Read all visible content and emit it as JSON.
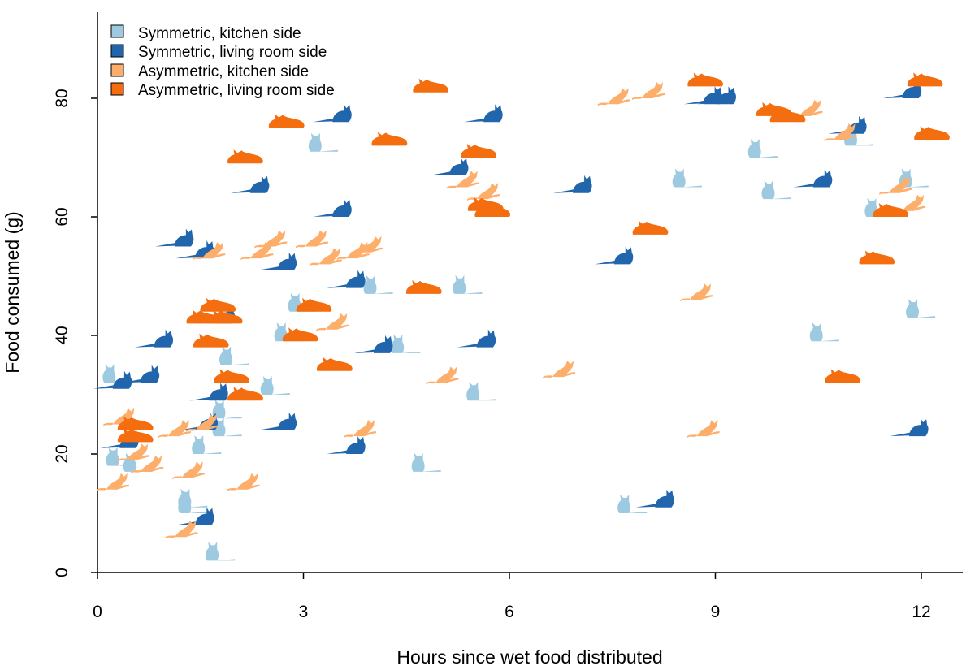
{
  "chart_data": {
    "type": "scatter",
    "title": "",
    "xlabel": "Hours since wet food distributed",
    "ylabel": "Food consumed (g)",
    "xlim": [
      0,
      12.4
    ],
    "ylim": [
      0,
      95
    ],
    "xticks": [
      0,
      3,
      6,
      9,
      12
    ],
    "yticks": [
      0,
      20,
      40,
      60,
      80
    ],
    "xtick_labels": [
      "0",
      "3",
      "6",
      "9",
      "12"
    ],
    "ytick_labels": [
      "0",
      "20",
      "40",
      "60",
      "80"
    ],
    "legend_position": "top-left",
    "series": [
      {
        "name": "Symmetric, kitchen side",
        "color": "#9ecae1",
        "marker": "sitting-cat-icon",
        "points": [
          [
            0.1,
            32
          ],
          [
            0.15,
            18
          ],
          [
            0.4,
            17
          ],
          [
            1.2,
            11
          ],
          [
            1.2,
            10
          ],
          [
            1.4,
            20
          ],
          [
            1.6,
            2
          ],
          [
            1.7,
            26
          ],
          [
            1.7,
            23
          ],
          [
            1.8,
            35
          ],
          [
            2.4,
            30
          ],
          [
            2.6,
            39
          ],
          [
            2.8,
            44
          ],
          [
            3.1,
            71
          ],
          [
            3.9,
            47
          ],
          [
            4.3,
            37
          ],
          [
            4.6,
            17
          ],
          [
            5.2,
            47
          ],
          [
            5.4,
            29
          ],
          [
            7.6,
            10
          ],
          [
            8.4,
            65
          ],
          [
            9.5,
            70
          ],
          [
            9.7,
            63
          ],
          [
            10.4,
            39
          ],
          [
            10.9,
            72
          ],
          [
            11.2,
            60
          ],
          [
            11.7,
            65
          ],
          [
            11.8,
            43
          ]
        ]
      },
      {
        "name": "Symmetric, living room side",
        "color": "#2166ac",
        "marker": "lying-cat-icon",
        "points": [
          [
            0.2,
            31
          ],
          [
            0.3,
            21
          ],
          [
            0.6,
            32
          ],
          [
            0.8,
            38
          ],
          [
            1.1,
            55
          ],
          [
            1.4,
            53
          ],
          [
            1.45,
            24
          ],
          [
            1.4,
            8
          ],
          [
            1.6,
            29
          ],
          [
            1.7,
            42
          ],
          [
            2.2,
            64
          ],
          [
            2.6,
            24
          ],
          [
            2.6,
            51
          ],
          [
            3.4,
            76
          ],
          [
            3.4,
            60
          ],
          [
            3.6,
            48
          ],
          [
            3.6,
            20
          ],
          [
            4.0,
            37
          ],
          [
            5.1,
            67
          ],
          [
            5.5,
            38
          ],
          [
            5.6,
            76
          ],
          [
            6.9,
            64
          ],
          [
            7.5,
            52
          ],
          [
            8.1,
            11
          ],
          [
            8.8,
            79
          ],
          [
            9.0,
            79
          ],
          [
            10.4,
            65
          ],
          [
            10.9,
            74
          ],
          [
            11.7,
            80
          ],
          [
            11.8,
            23
          ]
        ]
      },
      {
        "name": "Asymmetric, kitchen side",
        "color": "#fdae6b",
        "marker": "pouncing-cat-icon",
        "points": [
          [
            0.2,
            14
          ],
          [
            0.3,
            25
          ],
          [
            0.5,
            19
          ],
          [
            0.7,
            17
          ],
          [
            1.1,
            23
          ],
          [
            1.2,
            6
          ],
          [
            1.3,
            16
          ],
          [
            1.5,
            24
          ],
          [
            1.6,
            53
          ],
          [
            2.1,
            14
          ],
          [
            2.3,
            53
          ],
          [
            2.5,
            55
          ],
          [
            3.1,
            55
          ],
          [
            3.3,
            52
          ],
          [
            3.4,
            41
          ],
          [
            3.7,
            53
          ],
          [
            3.9,
            54
          ],
          [
            3.8,
            23
          ],
          [
            5.0,
            32
          ],
          [
            5.3,
            65
          ],
          [
            5.6,
            63
          ],
          [
            6.7,
            33
          ],
          [
            7.5,
            79
          ],
          [
            8.0,
            80
          ],
          [
            8.7,
            46
          ],
          [
            8.8,
            23
          ],
          [
            10.3,
            77
          ],
          [
            10.8,
            73
          ],
          [
            11.6,
            64
          ],
          [
            11.8,
            61
          ]
        ]
      },
      {
        "name": "Asymmetric, living room side",
        "color": "#f46d0e",
        "marker": "loaf-cat-icon",
        "points": [
          [
            0.3,
            24
          ],
          [
            0.3,
            22
          ],
          [
            1.3,
            42
          ],
          [
            1.4,
            38
          ],
          [
            1.5,
            44
          ],
          [
            1.6,
            42
          ],
          [
            1.7,
            32
          ],
          [
            1.9,
            29
          ],
          [
            1.9,
            69
          ],
          [
            2.5,
            75
          ],
          [
            2.7,
            39
          ],
          [
            2.9,
            44
          ],
          [
            3.2,
            34
          ],
          [
            4.0,
            72
          ],
          [
            4.5,
            47
          ],
          [
            4.6,
            81
          ],
          [
            5.3,
            70
          ],
          [
            5.4,
            61
          ],
          [
            5.5,
            60
          ],
          [
            7.8,
            57
          ],
          [
            8.6,
            82
          ],
          [
            9.6,
            77
          ],
          [
            9.8,
            76
          ],
          [
            10.6,
            32
          ],
          [
            11.1,
            52
          ],
          [
            11.3,
            60
          ],
          [
            11.8,
            82
          ],
          [
            11.9,
            73
          ]
        ]
      }
    ]
  }
}
